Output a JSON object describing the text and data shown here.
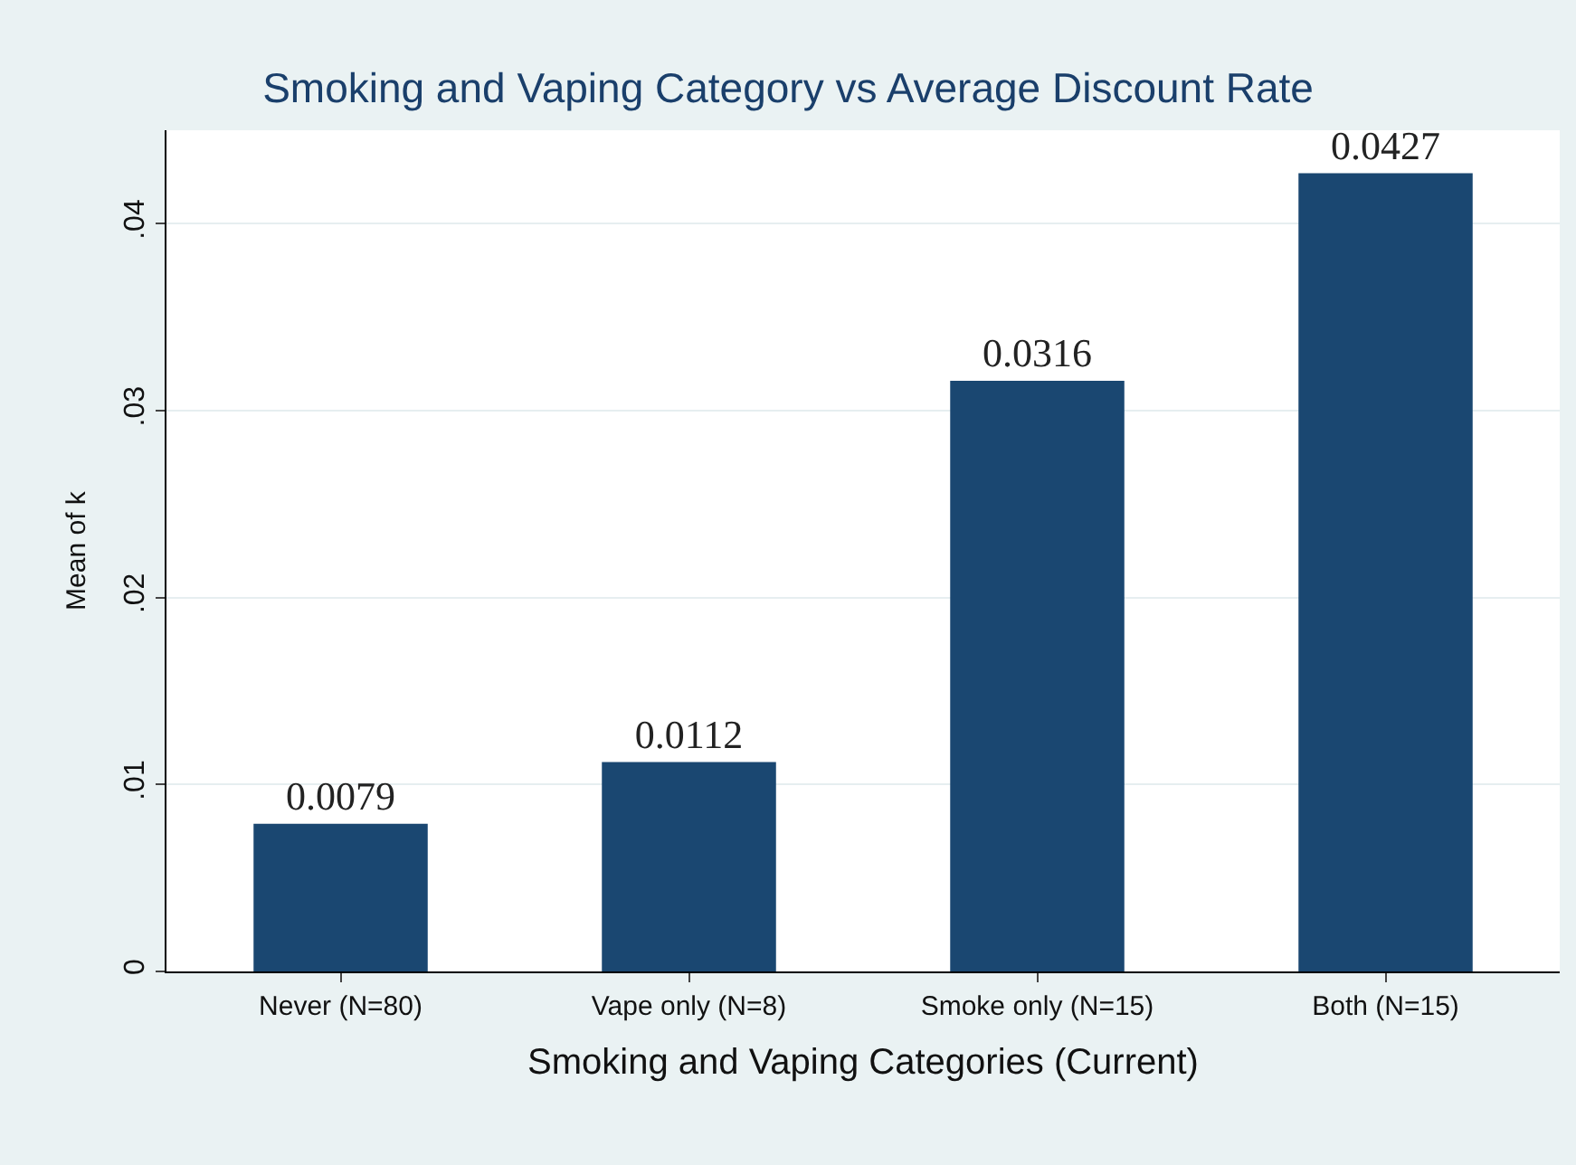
{
  "chart_data": {
    "type": "bar",
    "title": "Smoking and Vaping Category vs Average Discount Rate",
    "xlabel": "Smoking and Vaping Categories (Current)",
    "ylabel": "Mean of k",
    "categories": [
      "Never (N=80)",
      "Vape only (N=8)",
      "Smoke only (N=15)",
      "Both (N=15)"
    ],
    "values": [
      0.0079,
      0.0112,
      0.0316,
      0.0427
    ],
    "color": "#1a4771",
    "ylim": [
      0,
      0.045
    ],
    "yticks": [
      0,
      {
        "value": 0.01,
        "label": ".01"
      },
      {
        "value": 0.02,
        "label": ".02"
      },
      {
        "value": 0.03,
        "label": ".03"
      },
      {
        "value": 0.04,
        "label": ".04"
      }
    ],
    "grid": "y",
    "data_labels": true
  }
}
